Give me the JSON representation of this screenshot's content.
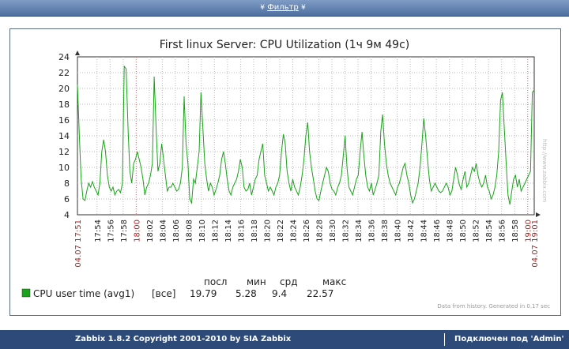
{
  "filter": {
    "label": "Фильтр",
    "chevron_left": "¥",
    "chevron_right": "¥"
  },
  "chart_data": {
    "type": "line",
    "title": "First linux Server: CPU Utilization  (1ч 9м 49с)",
    "ylim": [
      4,
      24
    ],
    "yticks": [
      "4",
      "6",
      "8",
      "10",
      "12",
      "14",
      "16",
      "18",
      "20",
      "22",
      "24"
    ],
    "start_label": "04.07 17:51",
    "end_label": "04.07 19:01",
    "xticks": [
      "17:54",
      "17:56",
      "17:58",
      "18:00",
      "18:02",
      "18:04",
      "18:06",
      "18:08",
      "18:10",
      "18:12",
      "18:14",
      "18:16",
      "18:18",
      "18:20",
      "18:22",
      "18:24",
      "18:26",
      "18:28",
      "18:30",
      "18:32",
      "18:34",
      "18:36",
      "18:38",
      "18:40",
      "18:42",
      "18:44",
      "18:46",
      "18:48",
      "18:50",
      "18:52",
      "18:54",
      "18:56",
      "18:58",
      "19:00"
    ],
    "highlighted_ticks": [
      "18:00",
      "19:00"
    ],
    "grid": true,
    "series": [
      {
        "name": "CPU user time (avg1)",
        "color": "#1aa31a",
        "values": [
          20.5,
          14,
          8.5,
          6,
          5.8,
          7,
          8,
          7.5,
          8.2,
          7.5,
          7,
          6.5,
          8,
          12,
          13.5,
          12,
          9,
          7.5,
          7,
          7.5,
          6.5,
          7,
          7.2,
          6.8,
          8,
          22.8,
          22.5,
          15,
          9.5,
          8,
          10.5,
          11,
          12,
          11,
          10,
          8.5,
          6.5,
          7.5,
          8,
          9,
          10.5,
          21.5,
          15,
          9.5,
          10.5,
          13,
          11,
          9,
          7,
          7.5,
          7.5,
          8,
          7.5,
          7,
          7.2,
          8,
          10,
          19,
          13,
          10.5,
          6,
          5.5,
          8.5,
          8,
          10,
          12,
          19.5,
          15,
          10.5,
          8.5,
          7,
          8,
          7.5,
          6.5,
          7.2,
          8,
          9,
          11,
          12,
          10.5,
          8.5,
          7,
          6.5,
          7.5,
          8,
          8.5,
          9.5,
          11,
          10,
          7.5,
          7,
          7.2,
          8,
          6.5,
          7.5,
          8.5,
          9,
          11,
          12,
          13,
          9,
          8,
          7,
          7.5,
          7,
          6.5,
          7.5,
          8,
          9,
          12,
          14.2,
          13,
          9.5,
          8,
          7,
          8.5,
          7.5,
          7,
          6.5,
          7.5,
          9,
          11,
          14,
          15.7,
          12,
          10,
          8.5,
          7,
          6,
          5.8,
          7,
          8,
          9,
          10,
          9.5,
          8,
          7.2,
          7,
          6.5,
          7.5,
          8,
          9,
          11.5,
          14,
          10,
          7.5,
          7,
          6.5,
          7.5,
          8.5,
          9,
          12,
          14.5,
          11.5,
          9,
          7.5,
          7,
          8,
          6.5,
          7.2,
          8,
          9,
          14.5,
          16.7,
          13,
          10.5,
          9,
          8,
          7.5,
          7,
          6.5,
          7.5,
          8,
          9,
          10,
          10.5,
          9,
          8,
          6.5,
          5.5,
          6,
          7,
          8,
          10,
          13,
          16.2,
          14,
          11,
          8.5,
          7,
          7.5,
          8,
          7.5,
          7,
          6.8,
          7,
          7.5,
          8,
          7.5,
          6.5,
          7,
          8.5,
          10,
          9,
          7.8,
          7.2,
          8.5,
          9.5,
          7.5,
          8,
          9,
          10,
          9.5,
          10.5,
          9,
          8,
          7.5,
          8,
          9,
          7.5,
          7,
          6,
          6.5,
          7.5,
          9,
          12,
          18.5,
          19.5,
          15,
          10.5,
          6.5,
          5.3,
          7,
          8.5,
          9,
          7.5,
          8.5,
          7,
          7.5,
          8,
          8.5,
          9,
          9.5,
          19.5,
          19.79
        ]
      }
    ],
    "legend": {
      "headers": [
        "посл",
        "мин",
        "срд",
        "макс"
      ],
      "rows": [
        {
          "name": "CPU user time (avg1)",
          "type": "[все]",
          "last": "19.79",
          "min": "5.28",
          "avg": "9.4",
          "max": "22.57",
          "color": "#1aa31a"
        }
      ]
    },
    "note": "Data from history. Generated in 0.17 sec",
    "watermark": "http://www.zabbix.com"
  },
  "footer": {
    "copyright": "Zabbix 1.8.2 Copyright 2001-2010 by SIA Zabbix",
    "user": "Подключен под 'Admin'"
  }
}
